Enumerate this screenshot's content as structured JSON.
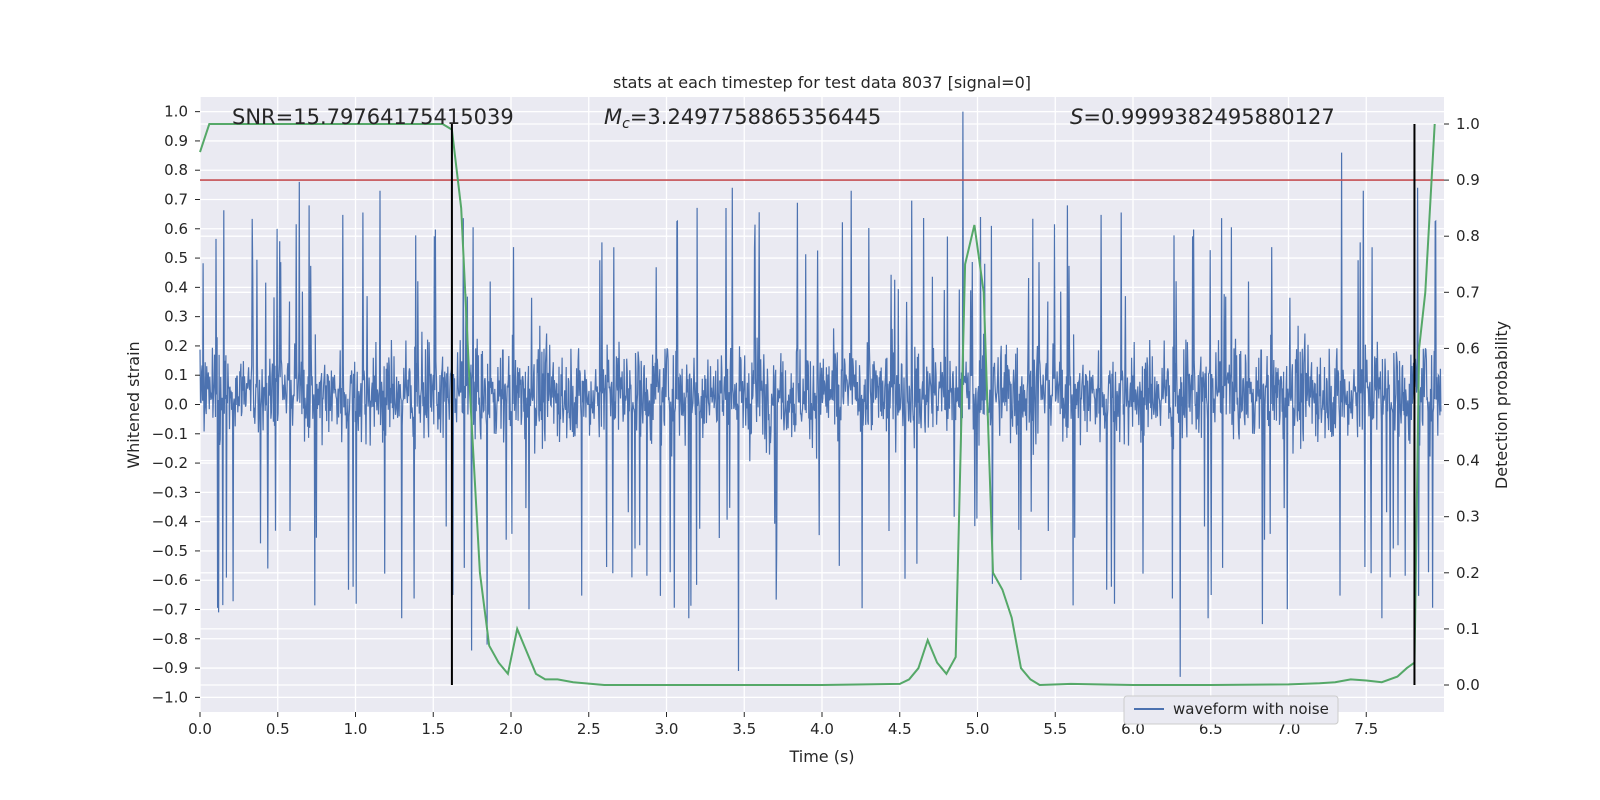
{
  "chart_data": {
    "type": "line",
    "title": "stats at each timestep for test data 8037 [signal=0]",
    "xlabel": "Time (s)",
    "ylabel_left": "Whitened strain",
    "ylabel_right": "Detection probability",
    "xlim": [
      0.0,
      8.0
    ],
    "ylim_left": [
      -1.05,
      1.05
    ],
    "ylim_right": [
      -0.05,
      1.0
    ],
    "x_ticks": [
      "0.0",
      "0.5",
      "1.0",
      "1.5",
      "2.0",
      "2.5",
      "3.0",
      "3.5",
      "4.0",
      "4.5",
      "5.0",
      "5.5",
      "6.0",
      "6.5",
      "7.0",
      "7.5"
    ],
    "x_tick_values": [
      0.0,
      0.5,
      1.0,
      1.5,
      2.0,
      2.5,
      3.0,
      3.5,
      4.0,
      4.5,
      5.0,
      5.5,
      6.0,
      6.5,
      7.0,
      7.5
    ],
    "y_left_ticks": [
      "1.0",
      "0.9",
      "0.8",
      "0.7",
      "0.6",
      "0.5",
      "0.4",
      "0.3",
      "0.2",
      "0.1",
      "0.0",
      "−0.1",
      "−0.2",
      "−0.3",
      "−0.4",
      "−0.5",
      "−0.6",
      "−0.7",
      "−0.8",
      "−0.9",
      "−1.0"
    ],
    "y_left_tick_values": [
      1.0,
      0.9,
      0.8,
      0.7,
      0.6,
      0.5,
      0.4,
      0.3,
      0.2,
      0.1,
      0.0,
      -0.1,
      -0.2,
      -0.3,
      -0.4,
      -0.5,
      -0.6,
      -0.7,
      -0.8,
      -0.9,
      -1.0
    ],
    "y_right_ticks": [
      "1.0",
      "0.9",
      "0.8",
      "0.7",
      "0.6",
      "0.5",
      "0.4",
      "0.3",
      "0.2",
      "0.1",
      "0.0"
    ],
    "y_right_tick_values": [
      1.0,
      0.9,
      0.8,
      0.7,
      0.6,
      0.5,
      0.4,
      0.3,
      0.2,
      0.1,
      0.0
    ],
    "annotations": {
      "snr": "SNR=15.79764175415039",
      "mc_symbol": "M",
      "mc_sub": "c",
      "mc_value": "=3.2497758865356445",
      "s_symbol": "S",
      "s_value": "=0.9999382495880127"
    },
    "threshold_line": {
      "y": 0.9,
      "axis": "right",
      "color": "#c44e52"
    },
    "vertical_lines": [
      {
        "x": 1.62,
        "y_range": [
          0.0,
          1.0
        ],
        "color": "#000000"
      },
      {
        "x": 7.81,
        "y_range": [
          0.0,
          1.0
        ],
        "color": "#000000"
      }
    ],
    "legend": {
      "placement": "lower-right",
      "entries": [
        "waveform with noise"
      ]
    },
    "grid": true,
    "series": [
      {
        "name": "waveform with noise",
        "axis": "left",
        "color": "#4c72b0",
        "sample_count": 2400,
        "typical_range": [
          -0.3,
          0.4
        ],
        "max": 1.0,
        "min": -0.93,
        "spikes": [
          {
            "x": 0.64,
            "y": 0.76
          },
          {
            "x": 0.12,
            "y": -0.71
          },
          {
            "x": 1.16,
            "y": 0.73
          },
          {
            "x": 1.3,
            "y": -0.73
          },
          {
            "x": 3.47,
            "y": -0.91
          },
          {
            "x": 4.92,
            "y": 1.0
          },
          {
            "x": 6.32,
            "y": -0.93
          },
          {
            "x": 7.36,
            "y": 0.86
          },
          {
            "x": 7.62,
            "y": -0.73
          },
          {
            "x": 1.75,
            "y": -0.84
          },
          {
            "x": 1.85,
            "y": -0.82
          },
          {
            "x": 3.15,
            "y": -0.73
          },
          {
            "x": 3.43,
            "y": 0.74
          },
          {
            "x": 4.2,
            "y": 0.73
          },
          {
            "x": 6.5,
            "y": -0.73
          },
          {
            "x": 6.85,
            "y": -0.75
          },
          {
            "x": 7.5,
            "y": 0.73
          },
          {
            "x": 7.85,
            "y": 0.74
          }
        ]
      },
      {
        "name": "detection probability",
        "axis": "right",
        "color": "#55a868",
        "x": [
          0.0,
          0.06,
          0.12,
          0.5,
          1.0,
          1.5,
          1.56,
          1.62,
          1.68,
          1.74,
          1.8,
          1.86,
          1.92,
          1.98,
          2.04,
          2.1,
          2.16,
          2.22,
          2.3,
          2.4,
          2.6,
          3.0,
          3.5,
          4.0,
          4.5,
          4.56,
          4.62,
          4.68,
          4.74,
          4.8,
          4.86,
          4.92,
          4.98,
          5.04,
          5.1,
          5.16,
          5.22,
          5.28,
          5.34,
          5.4,
          5.6,
          6.0,
          6.5,
          7.0,
          7.2,
          7.3,
          7.4,
          7.5,
          7.6,
          7.7,
          7.76,
          7.81,
          7.84,
          7.88,
          7.94
        ],
        "y": [
          0.95,
          1.0,
          1.0,
          1.0,
          1.0,
          1.0,
          1.0,
          0.99,
          0.85,
          0.5,
          0.2,
          0.07,
          0.04,
          0.02,
          0.1,
          0.06,
          0.02,
          0.01,
          0.01,
          0.005,
          0.0,
          0.0,
          0.0,
          0.0,
          0.002,
          0.01,
          0.03,
          0.08,
          0.04,
          0.02,
          0.05,
          0.75,
          0.82,
          0.7,
          0.2,
          0.17,
          0.12,
          0.03,
          0.01,
          0.0,
          0.002,
          0.0,
          0.0,
          0.001,
          0.003,
          0.005,
          0.01,
          0.008,
          0.005,
          0.015,
          0.03,
          0.04,
          0.6,
          0.7,
          1.0
        ]
      }
    ]
  }
}
